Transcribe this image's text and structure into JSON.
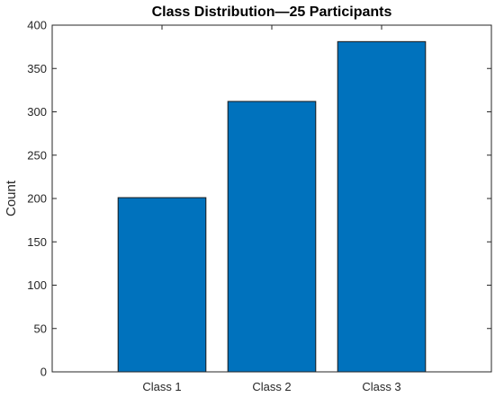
{
  "chart_data": {
    "type": "bar",
    "title": "Class Distribution—25 Participants",
    "xlabel": "",
    "ylabel": "Count",
    "categories": [
      "Class 1",
      "Class 2",
      "Class 3"
    ],
    "values": [
      201,
      312,
      381
    ],
    "ylim": [
      0,
      400
    ],
    "yticks": [
      0,
      50,
      100,
      150,
      200,
      250,
      300,
      350,
      400
    ],
    "xlim": [
      0,
      4
    ],
    "grid": false,
    "bar_color": "#0072BD"
  }
}
